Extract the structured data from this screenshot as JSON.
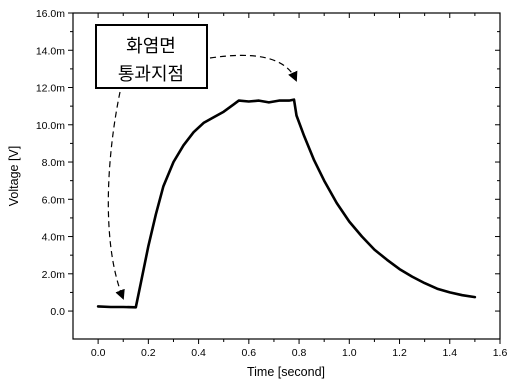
{
  "chart_data": {
    "type": "line",
    "xlabel": "Time [second]",
    "ylabel": "Voltage [V]",
    "xlim": [
      -0.1,
      1.6
    ],
    "ylim": [
      -1.5,
      16.0
    ],
    "x_ticks": [
      0.0,
      0.2,
      0.4,
      0.6,
      0.8,
      1.0,
      1.2,
      1.4,
      1.6
    ],
    "x_tick_labels": [
      "0.0",
      "0.2",
      "0.4",
      "0.6",
      "0.8",
      "1.0",
      "1.2",
      "1.4",
      "1.6"
    ],
    "y_ticks": [
      0.0,
      2.0,
      4.0,
      6.0,
      8.0,
      10.0,
      12.0,
      14.0,
      16.0
    ],
    "y_tick_labels": [
      "0.0",
      "2.0m",
      "4.0m",
      "6.0m",
      "8.0m",
      "10.0m",
      "12.0m",
      "14.0m",
      "16.0m"
    ],
    "grid": false,
    "legend": "none",
    "series": [
      {
        "color": "#000000",
        "x": [
          0.0,
          0.05,
          0.1,
          0.15,
          0.17,
          0.2,
          0.23,
          0.26,
          0.3,
          0.34,
          0.38,
          0.42,
          0.46,
          0.5,
          0.54,
          0.56,
          0.6,
          0.64,
          0.68,
          0.72,
          0.76,
          0.78,
          0.79,
          0.82,
          0.86,
          0.9,
          0.95,
          1.0,
          1.05,
          1.1,
          1.15,
          1.2,
          1.25,
          1.3,
          1.35,
          1.4,
          1.45,
          1.5
        ],
        "y": [
          0.25,
          0.22,
          0.22,
          0.2,
          1.5,
          3.5,
          5.2,
          6.7,
          8.0,
          8.9,
          9.6,
          10.1,
          10.4,
          10.7,
          11.1,
          11.3,
          11.25,
          11.3,
          11.2,
          11.3,
          11.3,
          11.35,
          10.5,
          9.4,
          8.1,
          7.0,
          5.8,
          4.8,
          4.0,
          3.3,
          2.75,
          2.25,
          1.85,
          1.5,
          1.2,
          1.0,
          0.85,
          0.75
        ]
      }
    ],
    "annotations": {
      "line1": "화염면",
      "line2": "통과지점"
    }
  }
}
